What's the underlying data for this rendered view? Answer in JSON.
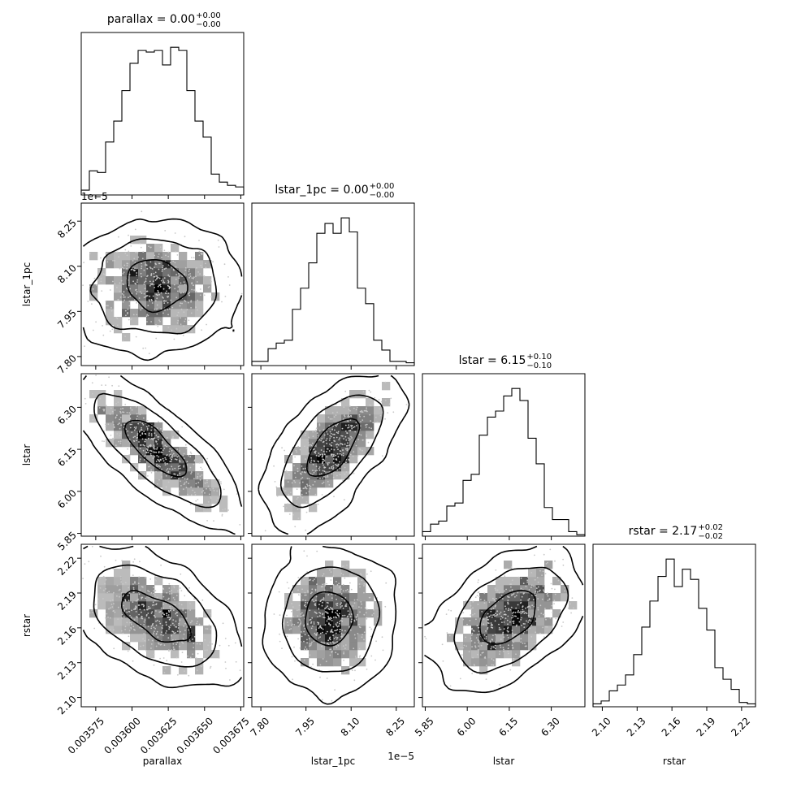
{
  "figure": {
    "width": 970,
    "height": 970
  },
  "chart_data": {
    "type": "corner",
    "parameters": [
      "parallax",
      "lstar_1pc",
      "lstar",
      "rstar"
    ],
    "axis_labels": [
      "parallax",
      "lstar_1pc",
      "lstar",
      "rstar"
    ],
    "titles": [
      {
        "name": "parallax",
        "value": "0.00",
        "plus": "+0.00",
        "minus": "−0.00"
      },
      {
        "name": "lstar_1pc",
        "value": "0.00",
        "plus": "+0.00",
        "minus": "−0.00"
      },
      {
        "name": "lstar",
        "value": "6.15",
        "plus": "+0.10",
        "minus": "−0.10"
      },
      {
        "name": "rstar",
        "value": "2.17",
        "plus": "+0.02",
        "minus": "−0.02"
      }
    ],
    "title_sep": " = ",
    "ranges": [
      [
        0.003565,
        0.003677
      ],
      [
        7.77e-05,
        8.31e-05
      ],
      [
        5.84,
        6.42
      ],
      [
        2.092,
        2.232
      ]
    ],
    "ticks": [
      {
        "values": [
          0.003575,
          0.0036,
          0.003625,
          0.00365,
          0.003675
        ],
        "labels": [
          "0.003575",
          "0.003600",
          "0.003625",
          "0.003650",
          "0.003675"
        ]
      },
      {
        "values": [
          7.8e-05,
          7.95e-05,
          8.1e-05,
          8.25e-05
        ],
        "labels": [
          "7.80",
          "7.95",
          "8.10",
          "8.25"
        ]
      },
      {
        "values": [
          5.85,
          6.0,
          6.15,
          6.3
        ],
        "labels": [
          "5.85",
          "6.00",
          "6.15",
          "6.30"
        ]
      },
      {
        "values": [
          2.1,
          2.13,
          2.16,
          2.19,
          2.22
        ],
        "labels": [
          "2.10",
          "2.13",
          "2.16",
          "2.19",
          "2.22"
        ]
      }
    ],
    "offset_text": [
      "",
      "1e−5",
      "",
      ""
    ],
    "hist_counts": [
      [
        3,
        15,
        14,
        33,
        46,
        65,
        82,
        90,
        89,
        90,
        81,
        92,
        90,
        65,
        46,
        36,
        13,
        8,
        6,
        5
      ],
      [
        3,
        3,
        12,
        16,
        18,
        40,
        55,
        73,
        94,
        101,
        94,
        105,
        95,
        55,
        44,
        18,
        11,
        3,
        3,
        2
      ],
      [
        3,
        8,
        10,
        20,
        22,
        37,
        41,
        67,
        79,
        83,
        93,
        98,
        90,
        65,
        48,
        19,
        11,
        11,
        3,
        1
      ],
      [
        2,
        4,
        11,
        15,
        22,
        36,
        55,
        73,
        90,
        102,
        83,
        95,
        88,
        68,
        53,
        27,
        19,
        12,
        3,
        2
      ]
    ],
    "correlations": [
      [
        1,
        0.0,
        -0.85,
        -0.55
      ],
      [
        0.0,
        1,
        0.7,
        0.05
      ],
      [
        -0.85,
        0.7,
        1,
        0.5
      ],
      [
        -0.55,
        0.05,
        0.5,
        1
      ]
    ],
    "centers": [
      0.003616,
      8.03e-05,
      6.15,
      2.168
    ],
    "sigmas": [
      2.15e-05,
      7.7e-07,
      0.1,
      0.021
    ],
    "contour_levels": [
      "39%",
      "86%",
      "99%"
    ],
    "color_map": [
      "#ffffff",
      "#000000"
    ],
    "line_color": "#000000"
  }
}
